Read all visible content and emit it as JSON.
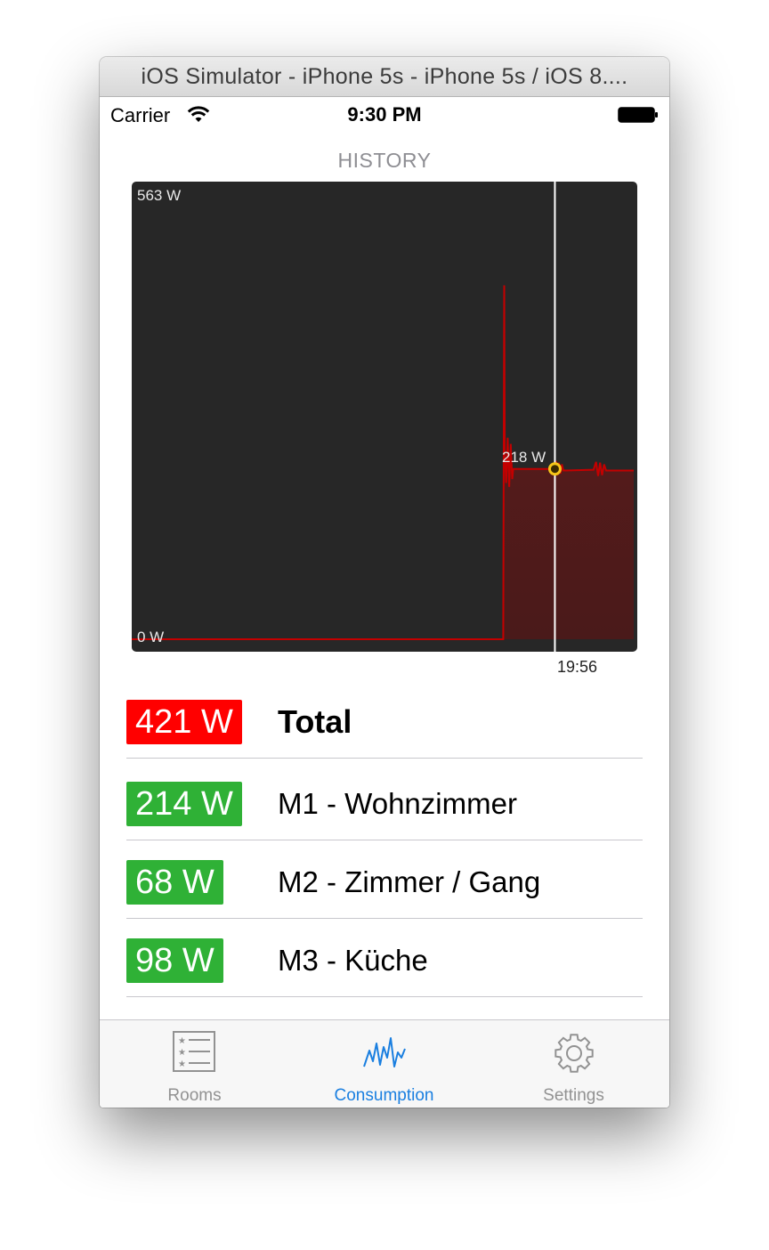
{
  "window": {
    "title": "iOS Simulator - iPhone 5s - iPhone 5s / iOS 8...."
  },
  "status_bar": {
    "carrier": "Carrier",
    "time": "9:30 PM"
  },
  "history": {
    "title": "HISTORY",
    "y_max_label": "563 W",
    "y_min_label": "0 W",
    "cursor_value_label": "218 W",
    "cursor_time_label": "19:56"
  },
  "chart_data": {
    "type": "area",
    "ylim": [
      0,
      563
    ],
    "yunit": "W",
    "series": [
      {
        "color": "#c40000",
        "points": [
          {
            "t": 0.0,
            "v": 0
          },
          {
            "t": 0.73,
            "v": 0
          },
          {
            "t": 0.74,
            "v": 0
          },
          {
            "t": 0.741,
            "v": 218
          },
          {
            "t": 0.742,
            "v": 453
          },
          {
            "t": 0.743,
            "v": 240
          },
          {
            "t": 0.746,
            "v": 200
          },
          {
            "t": 0.749,
            "v": 258
          },
          {
            "t": 0.752,
            "v": 195
          },
          {
            "t": 0.755,
            "v": 250
          },
          {
            "t": 0.758,
            "v": 205
          },
          {
            "t": 0.76,
            "v": 218
          },
          {
            "t": 0.84,
            "v": 218
          },
          {
            "t": 0.845,
            "v": 228
          },
          {
            "t": 0.848,
            "v": 210
          },
          {
            "t": 0.851,
            "v": 226
          },
          {
            "t": 0.854,
            "v": 212
          },
          {
            "t": 0.857,
            "v": 224
          },
          {
            "t": 0.86,
            "v": 216
          },
          {
            "t": 0.92,
            "v": 217
          },
          {
            "t": 0.925,
            "v": 227
          },
          {
            "t": 0.929,
            "v": 209
          },
          {
            "t": 0.933,
            "v": 226
          },
          {
            "t": 0.937,
            "v": 210
          },
          {
            "t": 0.941,
            "v": 224
          },
          {
            "t": 0.945,
            "v": 216
          },
          {
            "t": 1.0,
            "v": 216
          }
        ]
      }
    ],
    "cursor": {
      "t": 0.843,
      "v": 218
    }
  },
  "consumers": [
    {
      "value": "421 W",
      "name": "Total",
      "color": "red",
      "bold": true
    },
    {
      "value": "214 W",
      "name": "M1 - Wohnzimmer",
      "color": "green",
      "bold": false
    },
    {
      "value": "68 W",
      "name": "M2 - Zimmer / Gang",
      "color": "green",
      "bold": false
    },
    {
      "value": "98 W",
      "name": "M3 - Küche",
      "color": "green",
      "bold": false
    }
  ],
  "tabbar": {
    "tabs": [
      {
        "label": "Rooms",
        "icon": "list-icon",
        "active": false
      },
      {
        "label": "Consumption",
        "icon": "waveform-icon",
        "active": true
      },
      {
        "label": "Settings",
        "icon": "gear-icon",
        "active": false
      }
    ],
    "active_color": "#1a7fe0",
    "inactive_color": "#929292"
  }
}
